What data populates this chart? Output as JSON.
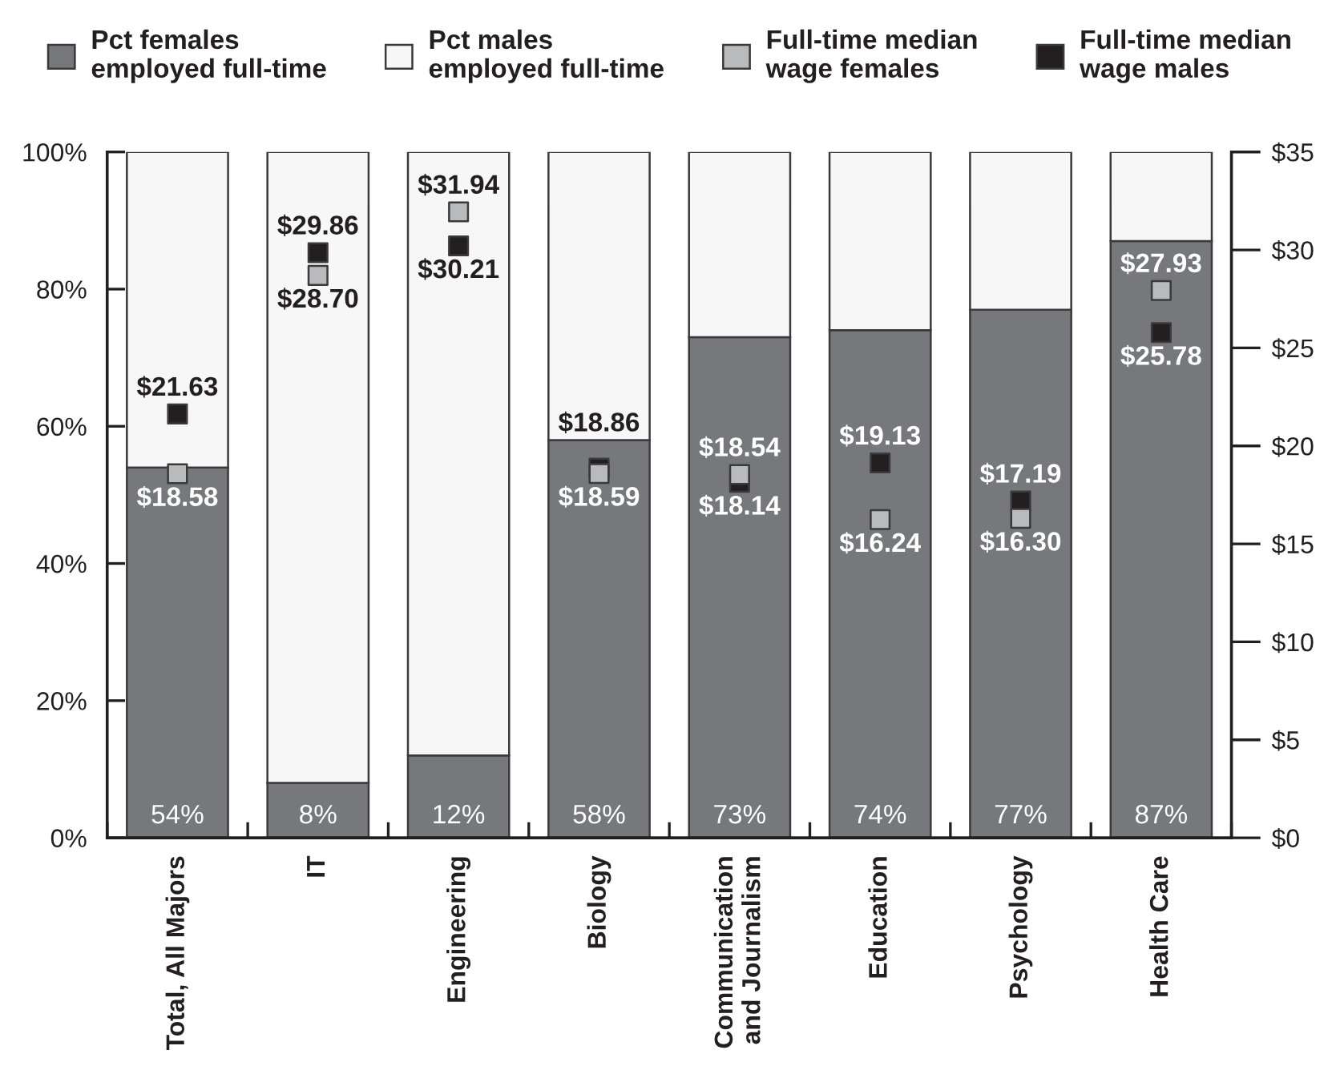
{
  "chart_data": {
    "type": "bar",
    "stacked": true,
    "categories": [
      "Total, All Majors",
      "IT",
      "Engineering",
      "Biology",
      "Communication\nand Journalism",
      "Education",
      "Psychology",
      "Health Care"
    ],
    "series": [
      {
        "name": "Pct females\nemployed full-time",
        "color": "#77787b",
        "values": [
          54,
          8,
          12,
          58,
          73,
          74,
          77,
          87
        ],
        "value_labels": [
          "54%",
          "8%",
          "12%",
          "58%",
          "73%",
          "74%",
          "77%",
          "87%"
        ]
      },
      {
        "name": "Pct males\nemployed full-time",
        "color": "#f7f7f7",
        "values": [
          46,
          92,
          88,
          42,
          27,
          26,
          23,
          13
        ]
      },
      {
        "name": "Full-time median\nwage females",
        "type": "scatter",
        "axis": "y2",
        "marker": "square",
        "color": "#b9babc",
        "values": [
          18.58,
          28.7,
          31.94,
          18.59,
          18.54,
          16.24,
          16.3,
          27.93
        ],
        "value_labels": [
          "$18.58",
          "$28.70",
          "$31.94",
          "$18.59",
          "$18.54",
          "$16.24",
          "$16.30",
          "$27.93"
        ]
      },
      {
        "name": "Full-time median\nwage males",
        "type": "scatter",
        "axis": "y2",
        "marker": "square",
        "color": "#231f20",
        "values": [
          21.63,
          29.86,
          30.21,
          18.86,
          18.14,
          19.13,
          17.19,
          25.78
        ],
        "value_labels": [
          "$21.63",
          "$29.86",
          "$30.21",
          "$18.86",
          "$18.14",
          "$19.13",
          "$17.19",
          "$25.78"
        ]
      }
    ],
    "ylim": [
      0,
      100
    ],
    "yticks": [
      {
        "value": 0,
        "label": "0%"
      },
      {
        "value": 20,
        "label": "20%"
      },
      {
        "value": 40,
        "label": "40%"
      },
      {
        "value": 60,
        "label": "60%"
      },
      {
        "value": 80,
        "label": "80%"
      },
      {
        "value": 100,
        "label": "100%"
      }
    ],
    "y2lim": [
      0,
      35
    ],
    "y2ticks": [
      {
        "value": 0,
        "label": "$0"
      },
      {
        "value": 5,
        "label": "$5"
      },
      {
        "value": 10,
        "label": "$10"
      },
      {
        "value": 15,
        "label": "$15"
      },
      {
        "value": 20,
        "label": "$20"
      },
      {
        "value": 25,
        "label": "$25"
      },
      {
        "value": 30,
        "label": "$30"
      },
      {
        "value": 35,
        "label": "$35"
      }
    ],
    "legend": "top"
  }
}
